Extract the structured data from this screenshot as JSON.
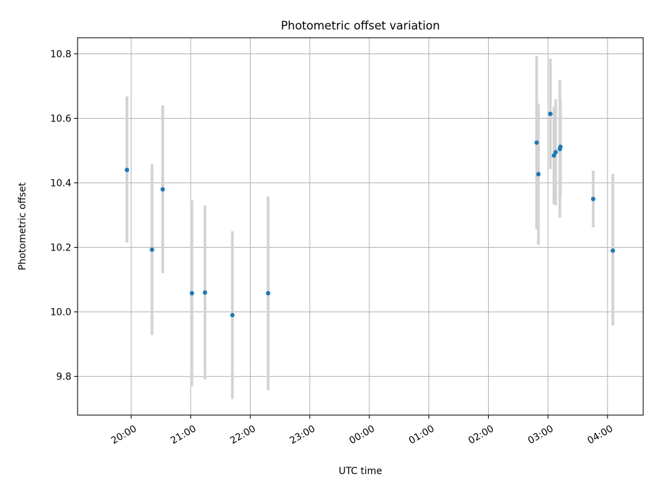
{
  "chart_data": {
    "type": "scatter",
    "title": "Photometric offset variation",
    "xlabel": "UTC time",
    "ylabel": "Photometric offset",
    "x_unit": "hours since 00:00 of the first date, shown as HH:MM",
    "xlim": [
      19.1,
      28.6
    ],
    "ylim": [
      9.68,
      10.85
    ],
    "grid": true,
    "x_ticks": [
      {
        "value": 20,
        "label": "20:00"
      },
      {
        "value": 21,
        "label": "21:00"
      },
      {
        "value": 22,
        "label": "22:00"
      },
      {
        "value": 23,
        "label": "23:00"
      },
      {
        "value": 24,
        "label": "00:00"
      },
      {
        "value": 25,
        "label": "01:00"
      },
      {
        "value": 26,
        "label": "02:00"
      },
      {
        "value": 27,
        "label": "03:00"
      },
      {
        "value": 28,
        "label": "04:00"
      }
    ],
    "y_ticks": [
      {
        "value": 9.8,
        "label": "9.8"
      },
      {
        "value": 10.0,
        "label": "10.0"
      },
      {
        "value": 10.2,
        "label": "10.2"
      },
      {
        "value": 10.4,
        "label": "10.4"
      },
      {
        "value": 10.6,
        "label": "10.6"
      },
      {
        "value": 10.8,
        "label": "10.8"
      }
    ],
    "point_color": "#1f77b4",
    "error_color": "#d3d3d3",
    "points": [
      {
        "t": "19:56",
        "x": 19.93,
        "y": 10.44,
        "lo": 10.215,
        "hi": 10.668
      },
      {
        "t": "20:21",
        "x": 20.35,
        "y": 10.193,
        "lo": 9.928,
        "hi": 10.458
      },
      {
        "t": "20:32",
        "x": 20.53,
        "y": 10.38,
        "lo": 10.12,
        "hi": 10.64
      },
      {
        "t": "21:01",
        "x": 21.02,
        "y": 10.058,
        "lo": 9.77,
        "hi": 10.346
      },
      {
        "t": "21:14",
        "x": 21.24,
        "y": 10.06,
        "lo": 9.79,
        "hi": 10.33
      },
      {
        "t": "21:42",
        "x": 21.7,
        "y": 9.99,
        "lo": 9.73,
        "hi": 10.25
      },
      {
        "t": "22:18",
        "x": 22.3,
        "y": 10.058,
        "lo": 9.757,
        "hi": 10.358
      },
      {
        "t": "02:48",
        "x": 26.81,
        "y": 10.525,
        "lo": 10.257,
        "hi": 10.793
      },
      {
        "t": "02:50",
        "x": 26.84,
        "y": 10.427,
        "lo": 10.208,
        "hi": 10.646
      },
      {
        "t": "03:02",
        "x": 27.04,
        "y": 10.614,
        "lo": 10.443,
        "hi": 10.785
      },
      {
        "t": "03:06",
        "x": 27.1,
        "y": 10.485,
        "lo": 10.334,
        "hi": 10.636
      },
      {
        "t": "03:08",
        "x": 27.13,
        "y": 10.495,
        "lo": 10.33,
        "hi": 10.66
      },
      {
        "t": "03:12",
        "x": 27.2,
        "y": 10.505,
        "lo": 10.292,
        "hi": 10.718
      },
      {
        "t": "03:12",
        "x": 27.21,
        "y": 10.512,
        "lo": 10.36,
        "hi": 10.66
      },
      {
        "t": "03:45",
        "x": 27.76,
        "y": 10.35,
        "lo": 10.262,
        "hi": 10.438
      },
      {
        "t": "04:05",
        "x": 28.09,
        "y": 10.19,
        "lo": 9.958,
        "hi": 10.428
      }
    ]
  }
}
